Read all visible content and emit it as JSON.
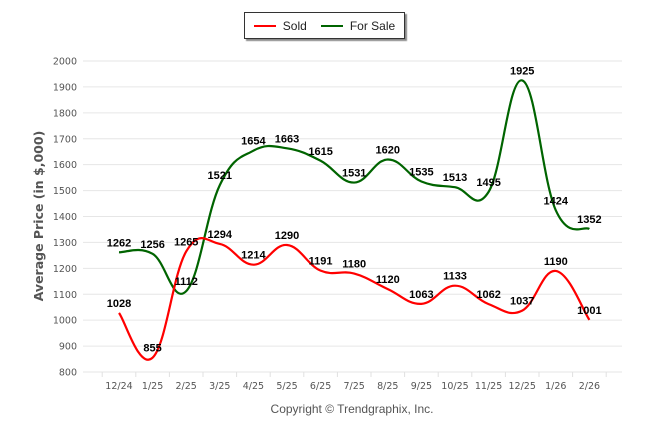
{
  "chart_data": {
    "type": "line",
    "title": "",
    "xlabel": "",
    "ylabel": "Average Price (in $,000)",
    "ylim": [
      800,
      2000
    ],
    "yticks": [
      800,
      900,
      1000,
      1100,
      1200,
      1300,
      1400,
      1500,
      1600,
      1700,
      1800,
      1900,
      2000
    ],
    "grid": true,
    "legend_position": "top-center",
    "categories": [
      "12/24",
      "1/25",
      "2/25",
      "3/25",
      "4/25",
      "5/25",
      "6/25",
      "7/25",
      "8/25",
      "9/25",
      "10/25",
      "11/25",
      "12/25",
      "1/26",
      "2/26"
    ],
    "series": [
      {
        "name": "Sold",
        "color": "#ff0000",
        "values": [
          1028,
          855,
          1265,
          1294,
          1214,
          1290,
          1191,
          1180,
          1120,
          1063,
          1133,
          1062,
          1037,
          1190,
          1001
        ]
      },
      {
        "name": "For Sale",
        "color": "#006400",
        "values": [
          1262,
          1256,
          1112,
          1521,
          1654,
          1663,
          1615,
          1531,
          1620,
          1535,
          1513,
          1495,
          1925,
          1424,
          1352
        ]
      }
    ],
    "footer": "Copyright © Trendgraphix, Inc."
  }
}
